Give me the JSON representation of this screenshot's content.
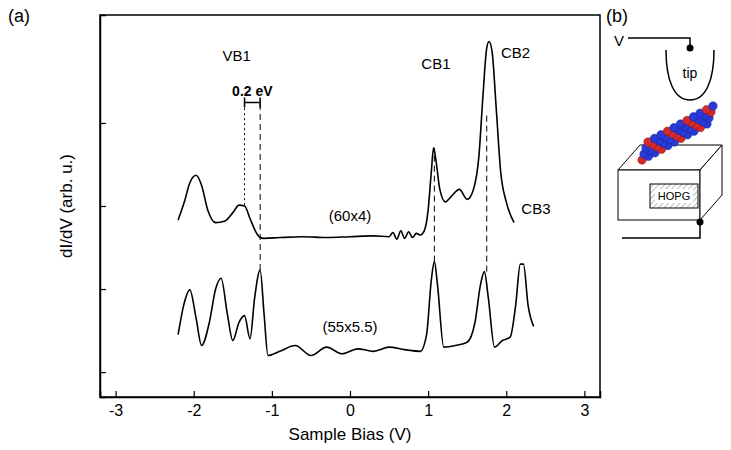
{
  "chart_data": {
    "type": "line",
    "panel_label": "(a)",
    "x_label": "Sample Bias (V)",
    "y_label": "dI/dV (arb. u.)",
    "xlim": [
      -3.2,
      3.2
    ],
    "xticks": [
      -3,
      -2,
      -1,
      0,
      1,
      2,
      3
    ],
    "ylim": [
      0,
      4.6
    ],
    "yticks": [
      0.3,
      1.3,
      2.3,
      3.3
    ],
    "tick_labels": "x",
    "grid": false,
    "series": [
      {
        "color": "#000000",
        "line_style": "solid",
        "x": [
          -2.2,
          -2.12,
          -2.05,
          -1.97,
          -1.9,
          -1.82,
          -1.72,
          -1.6,
          -1.5,
          -1.42,
          -1.35,
          -1.28,
          -1.2,
          -1.15,
          -1.1,
          -0.9,
          -0.6,
          -0.3,
          0,
          0.3,
          0.5,
          0.55,
          0.6,
          0.65,
          0.7,
          0.75,
          0.8,
          0.85,
          0.9,
          0.95,
          1.0,
          1.04,
          1.07,
          1.1,
          1.15,
          1.22,
          1.3,
          1.4,
          1.5,
          1.58,
          1.65,
          1.7,
          1.75,
          1.78,
          1.82,
          1.87,
          1.93,
          2.0,
          2.1
        ],
        "values": [
          2.13,
          2.35,
          2.58,
          2.67,
          2.55,
          2.25,
          2.1,
          2.12,
          2.22,
          2.31,
          2.3,
          2.15,
          1.98,
          1.92,
          1.91,
          1.92,
          1.93,
          1.92,
          1.93,
          1.94,
          1.93,
          1.98,
          1.9,
          2.0,
          1.91,
          1.99,
          1.92,
          1.97,
          1.95,
          2.0,
          2.25,
          2.7,
          3.0,
          2.85,
          2.5,
          2.35,
          2.42,
          2.5,
          2.38,
          2.5,
          2.9,
          3.6,
          4.2,
          4.28,
          4.15,
          3.5,
          2.7,
          2.35,
          2.1
        ]
      },
      {
        "color": "#000000",
        "line_style": "solid",
        "x": [
          -2.2,
          -2.13,
          -2.05,
          -1.97,
          -1.9,
          -1.8,
          -1.72,
          -1.65,
          -1.57,
          -1.5,
          -1.42,
          -1.35,
          -1.28,
          -1.22,
          -1.15,
          -1.1,
          -1.05,
          -0.9,
          -0.7,
          -0.5,
          -0.3,
          -0.1,
          0.1,
          0.3,
          0.5,
          0.7,
          0.9,
          0.98,
          1.04,
          1.08,
          1.12,
          1.2,
          1.35,
          1.5,
          1.6,
          1.67,
          1.72,
          1.77,
          1.85,
          1.95,
          2.05,
          2.12,
          2.18,
          2.22,
          2.28,
          2.35
        ],
        "values": [
          0.75,
          1.1,
          1.29,
          0.95,
          0.62,
          0.9,
          1.3,
          1.43,
          1.0,
          0.68,
          0.9,
          0.98,
          0.7,
          1.2,
          1.53,
          1.0,
          0.5,
          0.55,
          0.62,
          0.5,
          0.6,
          0.52,
          0.58,
          0.55,
          0.6,
          0.57,
          0.55,
          0.75,
          1.4,
          1.63,
          1.35,
          0.6,
          0.62,
          0.66,
          0.9,
          1.35,
          1.51,
          1.2,
          0.6,
          0.68,
          0.72,
          1.1,
          1.6,
          1.6,
          1.1,
          0.85
        ]
      }
    ],
    "annotations": [
      {
        "text": "VB1",
        "x": -1.45,
        "y": 4.05
      },
      {
        "text": "0.2 eV",
        "x": -1.25,
        "y": 3.62,
        "span": [
          -1.35,
          -1.15
        ]
      },
      {
        "text": "(60x4)",
        "x": 0.0,
        "y": 2.12
      },
      {
        "text": "(55x5.5)",
        "x": 0.0,
        "y": 0.78
      },
      {
        "text": "CB1",
        "x": 1.1,
        "y": 3.95
      },
      {
        "text": "CB2",
        "x": 2.12,
        "y": 4.08
      },
      {
        "text": "CB3",
        "x": 2.38,
        "y": 2.2
      }
    ],
    "guides": [
      {
        "x": -1.35,
        "y": [
          2.31,
          3.55
        ],
        "line_style": "dotted"
      },
      {
        "x": -1.15,
        "y": [
          1.53,
          3.55
        ],
        "line_style": "dashed"
      },
      {
        "x": 1.08,
        "y": [
          1.63,
          3.0
        ],
        "line_style": "dashed"
      },
      {
        "x": 1.75,
        "y": [
          1.51,
          3.4
        ],
        "line_style": "dashed"
      }
    ]
  },
  "diagram": {
    "label": "(b)",
    "voltage": "V",
    "tip": "tip",
    "substrate": "HOPG"
  }
}
